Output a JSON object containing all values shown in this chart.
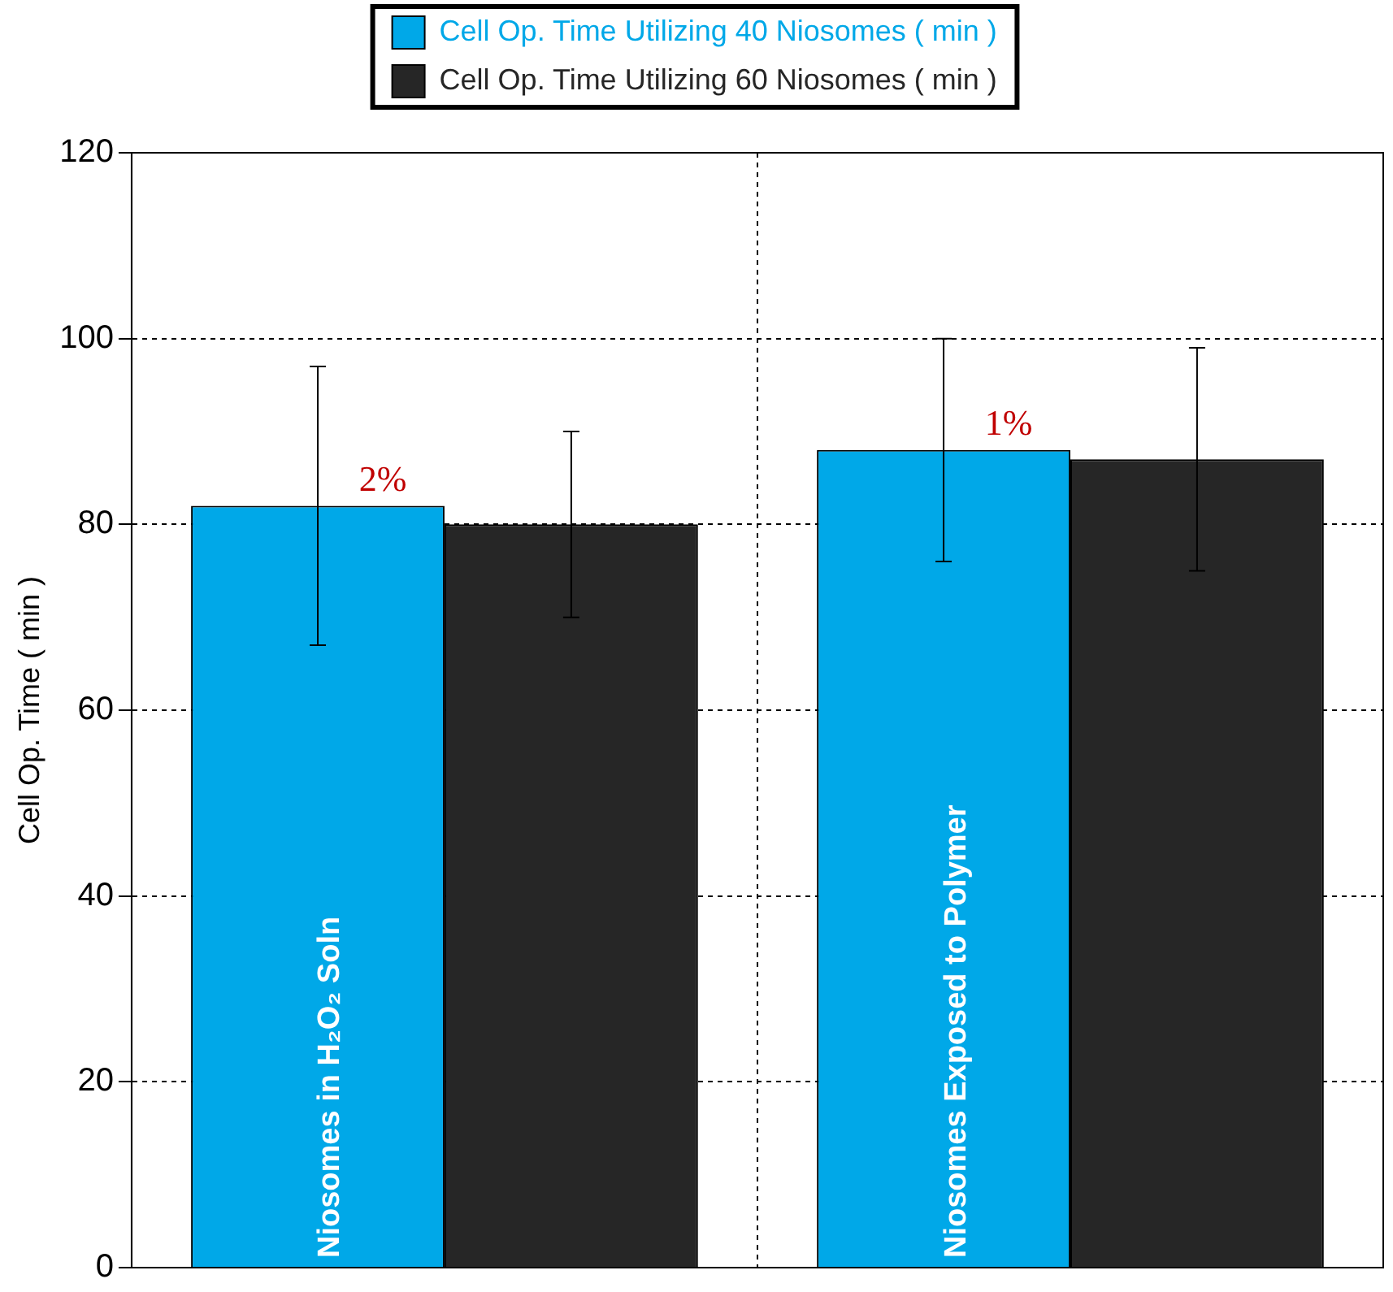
{
  "chart_data": {
    "type": "bar",
    "ylabel": "Cell Op. Time ( min )",
    "categories": [
      "Niosomes in H₂O₂ Soln",
      "Niosomes Exposed to Polymer"
    ],
    "series": [
      {
        "name": "Cell Op. Time Utilizing 40 Niosomes ( min )",
        "color": "#00a8e8",
        "values": [
          82,
          88
        ],
        "errors": [
          [
            67,
            97
          ],
          [
            76,
            100
          ]
        ]
      },
      {
        "name": "Cell Op. Time Utilizing 60 Niosomes ( min )",
        "color": "#262626",
        "values": [
          80,
          87
        ],
        "errors": [
          [
            70,
            90
          ],
          [
            75,
            99
          ]
        ]
      }
    ],
    "ylim": [
      0,
      120
    ],
    "yticks": [
      0,
      20,
      40,
      60,
      80,
      100,
      120
    ],
    "grid": true,
    "legend": "top",
    "annotations": [
      {
        "text": "2%",
        "x": "Niosomes in H₂O₂ Soln",
        "y": 82
      },
      {
        "text": "1%",
        "x": "Niosomes Exposed to Polymer",
        "y": 88
      }
    ]
  }
}
